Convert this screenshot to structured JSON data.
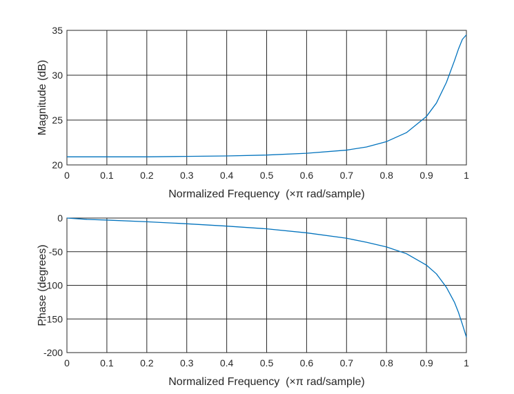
{
  "chart_data": [
    {
      "type": "line",
      "panel": "magnitude",
      "xlabel": "Normalized Frequency  (×π rad/sample)",
      "ylabel": "Magnitude (dB)",
      "xlim": [
        0,
        1
      ],
      "ylim": [
        20,
        35
      ],
      "xticks": [
        0,
        0.1,
        0.2,
        0.3,
        0.4,
        0.5,
        0.6,
        0.7,
        0.8,
        0.9,
        1
      ],
      "yticks": [
        20,
        25,
        30,
        35
      ],
      "grid": true,
      "line_color": "#0072BD",
      "x": [
        0,
        0.1,
        0.2,
        0.3,
        0.4,
        0.5,
        0.6,
        0.7,
        0.75,
        0.8,
        0.85,
        0.9,
        0.925,
        0.95,
        0.97,
        0.98,
        0.99,
        1.0
      ],
      "y": [
        20.9,
        20.9,
        20.9,
        20.95,
        21.0,
        21.1,
        21.3,
        21.65,
        22.0,
        22.6,
        23.6,
        25.4,
        26.9,
        29.2,
        31.6,
        32.9,
        34.0,
        34.5
      ]
    },
    {
      "type": "line",
      "panel": "phase",
      "xlabel": "Normalized Frequency  (×π rad/sample)",
      "ylabel": "Phase (degrees)",
      "xlim": [
        0,
        1
      ],
      "ylim": [
        -200,
        0
      ],
      "xticks": [
        0,
        0.1,
        0.2,
        0.3,
        0.4,
        0.5,
        0.6,
        0.7,
        0.8,
        0.9,
        1
      ],
      "yticks": [
        -200,
        -150,
        -100,
        -50,
        0
      ],
      "grid": true,
      "line_color": "#0072BD",
      "x": [
        0,
        0.05,
        0.1,
        0.2,
        0.3,
        0.4,
        0.5,
        0.6,
        0.7,
        0.75,
        0.8,
        0.85,
        0.9,
        0.925,
        0.95,
        0.97,
        0.98,
        0.99,
        1.0
      ],
      "y": [
        0,
        -2,
        -3,
        -5.5,
        -8.5,
        -12,
        -16,
        -22,
        -30,
        -36,
        -43,
        -53,
        -70,
        -83,
        -103,
        -125,
        -140,
        -158,
        -177
      ]
    }
  ]
}
